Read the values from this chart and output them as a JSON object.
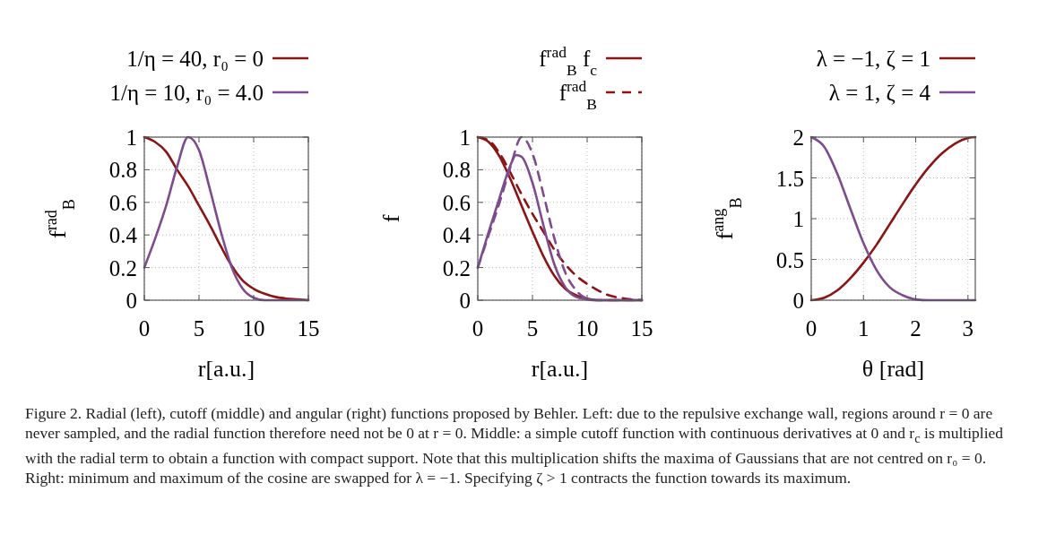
{
  "chart_data": [
    {
      "type": "line",
      "xlabel": "r[a.u.]",
      "ylabel": "f$^{rad}$$_{B}$",
      "xlim": [
        0,
        15
      ],
      "ylim": [
        0,
        1
      ],
      "xticks": [
        0,
        5,
        10,
        15
      ],
      "yticks": [
        0,
        0.2,
        0.4,
        0.6,
        0.8,
        1
      ],
      "grid": true,
      "legend": "top",
      "series": [
        {
          "name": "1/η = 40, r₀ = 0",
          "color": "#8b1414",
          "x": [
            0,
            1,
            2,
            3,
            4,
            5,
            6,
            7,
            8,
            9,
            10,
            11,
            12,
            13,
            14,
            15
          ],
          "values": [
            1,
            0.97,
            0.91,
            0.8,
            0.7,
            0.58,
            0.46,
            0.33,
            0.21,
            0.12,
            0.07,
            0.04,
            0.02,
            0.01,
            0.005,
            0
          ]
        },
        {
          "name": "1/η = 10, r₀ = 4.0",
          "color": "#7d4b8e",
          "x": [
            0,
            1,
            2,
            3,
            4,
            5,
            6,
            7,
            8,
            9,
            10,
            11,
            12,
            13,
            14,
            15
          ],
          "values": [
            0.2,
            0.38,
            0.58,
            0.82,
            1,
            0.92,
            0.68,
            0.42,
            0.2,
            0.07,
            0.015,
            0,
            0,
            0,
            0,
            0
          ]
        }
      ],
      "annotations": [
        "Figure 2. Radial (left), cutoff (middle) and angular (right) functions proposed by Behler. Left: due to the repulsive exchange wall, regions around r = 0 are never sampled, and the radial function therefore need not be 0 at r = 0. Middle: a simple cutoff function with continuous derivatives at 0 and r$_{c}$ is multiplied with the radial term to obtain a function with compact support. Note that this multiplication shifts the maxima of Gaussians that are not centred on r₀ = 0. Right: minimum and maximum of the cosine are swapped for λ = −1. Specifying ζ > 1 contracts the function towards its maximum."
      ]
    },
    {
      "type": "line",
      "xlabel": "r[a.u.]",
      "ylabel": "f",
      "xlim": [
        0,
        15
      ],
      "ylim": [
        0,
        1
      ],
      "xticks": [
        0,
        5,
        10,
        15
      ],
      "yticks": [
        0,
        0.2,
        0.4,
        0.6,
        0.8,
        1
      ],
      "grid": true,
      "legend": "top",
      "series": [
        {
          "name": "f$^{rad}$$_{B}$ f$_{c}$",
          "color": "#8b1414",
          "line_style": "solid",
          "x": [
            0,
            1,
            2,
            3,
            4,
            5,
            6,
            7,
            8,
            9,
            10,
            11,
            12,
            13,
            14,
            15
          ],
          "values": [
            1,
            0.97,
            0.88,
            0.74,
            0.58,
            0.42,
            0.27,
            0.15,
            0.07,
            0.03,
            0.01,
            0,
            0,
            0,
            0,
            0
          ]
        },
        {
          "name": "f$^{rad}$$_{B}$",
          "color": "#8b1414",
          "line_style": "dashed",
          "x": [
            0,
            1,
            2,
            3,
            4,
            5,
            6,
            7,
            8,
            9,
            10,
            11,
            12,
            13,
            14,
            15
          ],
          "values": [
            1,
            0.98,
            0.9,
            0.78,
            0.65,
            0.53,
            0.42,
            0.31,
            0.22,
            0.15,
            0.1,
            0.06,
            0.03,
            0.015,
            0.005,
            0
          ]
        },
        {
          "color": "#7d4b8e",
          "line_style": "solid",
          "x": [
            0,
            1,
            2,
            3,
            3.5,
            4,
            5,
            6,
            7,
            8,
            9,
            10,
            11,
            12,
            13,
            14,
            15
          ],
          "values": [
            0.2,
            0.42,
            0.63,
            0.83,
            0.89,
            0.88,
            0.72,
            0.46,
            0.22,
            0.08,
            0.02,
            0.005,
            0,
            0,
            0,
            0,
            0
          ]
        },
        {
          "color": "#7d4b8e",
          "line_style": "dashed",
          "x": [
            0,
            1,
            2,
            3,
            4,
            5,
            6,
            7,
            8,
            9,
            10,
            11,
            12,
            13,
            14,
            15
          ],
          "values": [
            0.2,
            0.4,
            0.6,
            0.82,
            1,
            0.9,
            0.65,
            0.38,
            0.17,
            0.06,
            0.01,
            0,
            0,
            0,
            0,
            0
          ]
        }
      ]
    },
    {
      "type": "line",
      "xlabel": "θ [rad]",
      "ylabel": "f$^{ang}$$_{B}$",
      "xlim": [
        0,
        3.14
      ],
      "ylim": [
        0,
        2
      ],
      "xticks": [
        0,
        1,
        2,
        3
      ],
      "yticks": [
        0,
        0.5,
        1,
        1.5,
        2
      ],
      "grid": true,
      "legend": "top",
      "series": [
        {
          "name": "λ = −1, ζ = 1",
          "color": "#8b1414",
          "x": [
            0,
            0.25,
            0.5,
            0.75,
            1,
            1.25,
            1.5,
            1.75,
            2,
            2.25,
            2.5,
            2.75,
            3,
            3.14
          ],
          "values": [
            0,
            0.03,
            0.12,
            0.27,
            0.46,
            0.68,
            0.93,
            1.18,
            1.42,
            1.63,
            1.8,
            1.92,
            1.99,
            2
          ]
        },
        {
          "name": "λ = 1, ζ = 4",
          "color": "#7d4b8e",
          "x": [
            0,
            0.25,
            0.5,
            0.75,
            1,
            1.25,
            1.5,
            1.75,
            2,
            2.25,
            2.5,
            2.75,
            3,
            3.14
          ],
          "values": [
            2,
            1.88,
            1.55,
            1.12,
            0.7,
            0.37,
            0.16,
            0.06,
            0.01,
            0,
            0,
            0,
            0,
            0
          ]
        }
      ]
    }
  ]
}
